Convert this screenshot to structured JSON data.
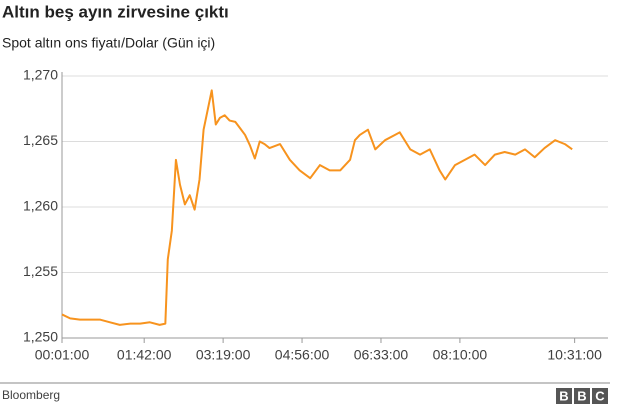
{
  "chart_data": {
    "type": "line",
    "title": "Altın beş ayın zirvesine çıktı",
    "subtitle": "Spot altın ons fiyatı/Dolar (Gün içi)",
    "source": "Bloomberg",
    "logo": [
      "B",
      "B",
      "C"
    ],
    "x": [
      "00:01:00",
      "00:11:00",
      "00:23:00",
      "00:35:00",
      "00:48:00",
      "01:00:00",
      "01:12:00",
      "01:25:00",
      "01:37:00",
      "01:49:00",
      "02:01:00",
      "02:08:00",
      "02:11:00",
      "02:16:00",
      "02:21:00",
      "02:26:00",
      "02:32:00",
      "02:38:00",
      "02:44:00",
      "02:50:00",
      "02:55:00",
      "03:00:00",
      "03:05:00",
      "03:10:00",
      "03:15:00",
      "03:21:00",
      "03:27:00",
      "03:34:00",
      "03:40:00",
      "03:46:00",
      "03:52:00",
      "03:58:00",
      "04:04:00",
      "04:10:00",
      "04:16:00",
      "04:29:00",
      "04:41:00",
      "04:53:00",
      "05:06:00",
      "05:18:00",
      "05:30:00",
      "05:43:00",
      "05:55:00",
      "06:01:00",
      "06:07:00",
      "06:17:00",
      "06:26:00",
      "06:38:00",
      "06:50:00",
      "06:56:00",
      "07:09:00",
      "07:21:00",
      "07:33:00",
      "07:45:00",
      "07:52:00",
      "08:04:00",
      "08:16:00",
      "08:28:00",
      "08:41:00",
      "08:53:00",
      "09:05:00",
      "09:18:00",
      "09:30:00",
      "09:42:00",
      "09:54:00",
      "10:07:00",
      "10:19:00",
      "10:28:00"
    ],
    "series": [
      {
        "color": "#f7931e",
        "values": [
          1251.8,
          1251.5,
          1251.4,
          1251.4,
          1251.4,
          1251.2,
          1251.0,
          1251.1,
          1251.1,
          1251.2,
          1251.0,
          1251.1,
          1256.0,
          1258.2,
          1263.6,
          1261.7,
          1260.2,
          1260.9,
          1259.8,
          1262.1,
          1265.9,
          1267.4,
          1268.9,
          1266.3,
          1266.8,
          1267.0,
          1266.6,
          1266.5,
          1266.0,
          1265.5,
          1264.7,
          1263.7,
          1265.0,
          1264.8,
          1264.5,
          1264.8,
          1263.6,
          1262.8,
          1262.2,
          1263.2,
          1262.8,
          1262.8,
          1263.6,
          1265.1,
          1265.5,
          1265.9,
          1264.4,
          1265.1,
          1265.5,
          1265.7,
          1264.4,
          1264.0,
          1264.4,
          1262.8,
          1262.1,
          1263.2,
          1263.6,
          1264.0,
          1263.2,
          1264.0,
          1264.2,
          1264.0,
          1264.4,
          1263.8,
          1264.5,
          1265.1,
          1264.8,
          1264.4
        ]
      }
    ],
    "xlim": [
      "00:01:00",
      "11:12:00"
    ],
    "xticks": [
      "00:01:00",
      "01:42:00",
      "03:19:00",
      "04:56:00",
      "06:33:00",
      "08:10:00",
      "10:31:00"
    ],
    "ylim": [
      1250,
      1270
    ],
    "yticks": [
      {
        "value": 1250,
        "label": "1,250"
      },
      {
        "value": 1255,
        "label": "1,255"
      },
      {
        "value": 1260,
        "label": "1,260"
      },
      {
        "value": 1265,
        "label": "1,265"
      },
      {
        "value": 1270,
        "label": "1,270"
      }
    ],
    "grid": true
  }
}
